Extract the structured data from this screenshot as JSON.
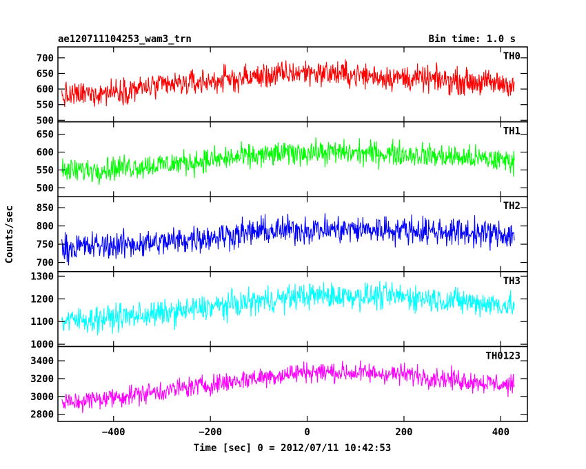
{
  "header": {
    "title": "ae120711104253_wam3_trn",
    "bin_time": "Bin time: 1.0 s"
  },
  "chart_data": {
    "type": "line",
    "xlabel": "Time [sec] 0 = 2012/07/11 10:42:53",
    "ylabel": "Counts/sec",
    "xlim": [
      -515,
      455
    ],
    "x_ticks": [
      -400,
      -200,
      0,
      200,
      400
    ],
    "x_tick_labels": [
      "−400",
      "−200",
      "0",
      "200",
      "400"
    ],
    "x_range_data": [
      -507,
      428
    ],
    "bin_time_s": 1.0,
    "grid": false,
    "panels": [
      {
        "name": "TH0",
        "color": "#ff0000",
        "ylim": [
          495,
          735
        ],
        "y_ticks": [
          500,
          550,
          600,
          650,
          700
        ],
        "y_tick_labels": [
          "500",
          "550",
          "600",
          "650",
          "700"
        ],
        "trend": [
          [
            -507,
            575
          ],
          [
            -300,
            610
          ],
          [
            -100,
            640
          ],
          [
            0,
            655
          ],
          [
            150,
            640
          ],
          [
            428,
            615
          ]
        ],
        "noise_amplitude": 30
      },
      {
        "name": "TH1",
        "color": "#00ff00",
        "ylim": [
          475,
          685
        ],
        "y_ticks": [
          500,
          550,
          600,
          650
        ],
        "y_tick_labels": [
          "500",
          "550",
          "600",
          "650"
        ],
        "trend": [
          [
            -507,
            545
          ],
          [
            -300,
            565
          ],
          [
            -100,
            590
          ],
          [
            0,
            600
          ],
          [
            200,
            595
          ],
          [
            428,
            575
          ]
        ],
        "noise_amplitude": 25
      },
      {
        "name": "TH2",
        "color": "#0000ff",
        "ylim": [
          675,
          880
        ],
        "y_ticks": [
          700,
          750,
          800,
          850
        ],
        "y_tick_labels": [
          "700",
          "750",
          "800",
          "850"
        ],
        "trend": [
          [
            -507,
            740
          ],
          [
            -300,
            755
          ],
          [
            -100,
            785
          ],
          [
            0,
            790
          ],
          [
            200,
            790
          ],
          [
            428,
            775
          ]
        ],
        "noise_amplitude": 28
      },
      {
        "name": "TH3",
        "color": "#00ffff",
        "ylim": [
          990,
          1320
        ],
        "y_ticks": [
          1000,
          1100,
          1200,
          1300
        ],
        "y_tick_labels": [
          "1000",
          "1100",
          "1200",
          "1300"
        ],
        "trend": [
          [
            -507,
            1100
          ],
          [
            -300,
            1135
          ],
          [
            -100,
            1190
          ],
          [
            0,
            1215
          ],
          [
            200,
            1210
          ],
          [
            428,
            1170
          ]
        ],
        "noise_amplitude": 42
      },
      {
        "name": "TH0123",
        "color": "#ff00ff",
        "ylim": [
          2720,
          3560
        ],
        "y_ticks": [
          2800,
          3000,
          3200,
          3400
        ],
        "y_tick_labels": [
          "2800",
          "3000",
          "3200",
          "3400"
        ],
        "trend": [
          [
            -507,
            2920
          ],
          [
            -300,
            3060
          ],
          [
            -100,
            3210
          ],
          [
            0,
            3280
          ],
          [
            200,
            3250
          ],
          [
            428,
            3120
          ]
        ],
        "noise_amplitude": 85
      }
    ]
  }
}
